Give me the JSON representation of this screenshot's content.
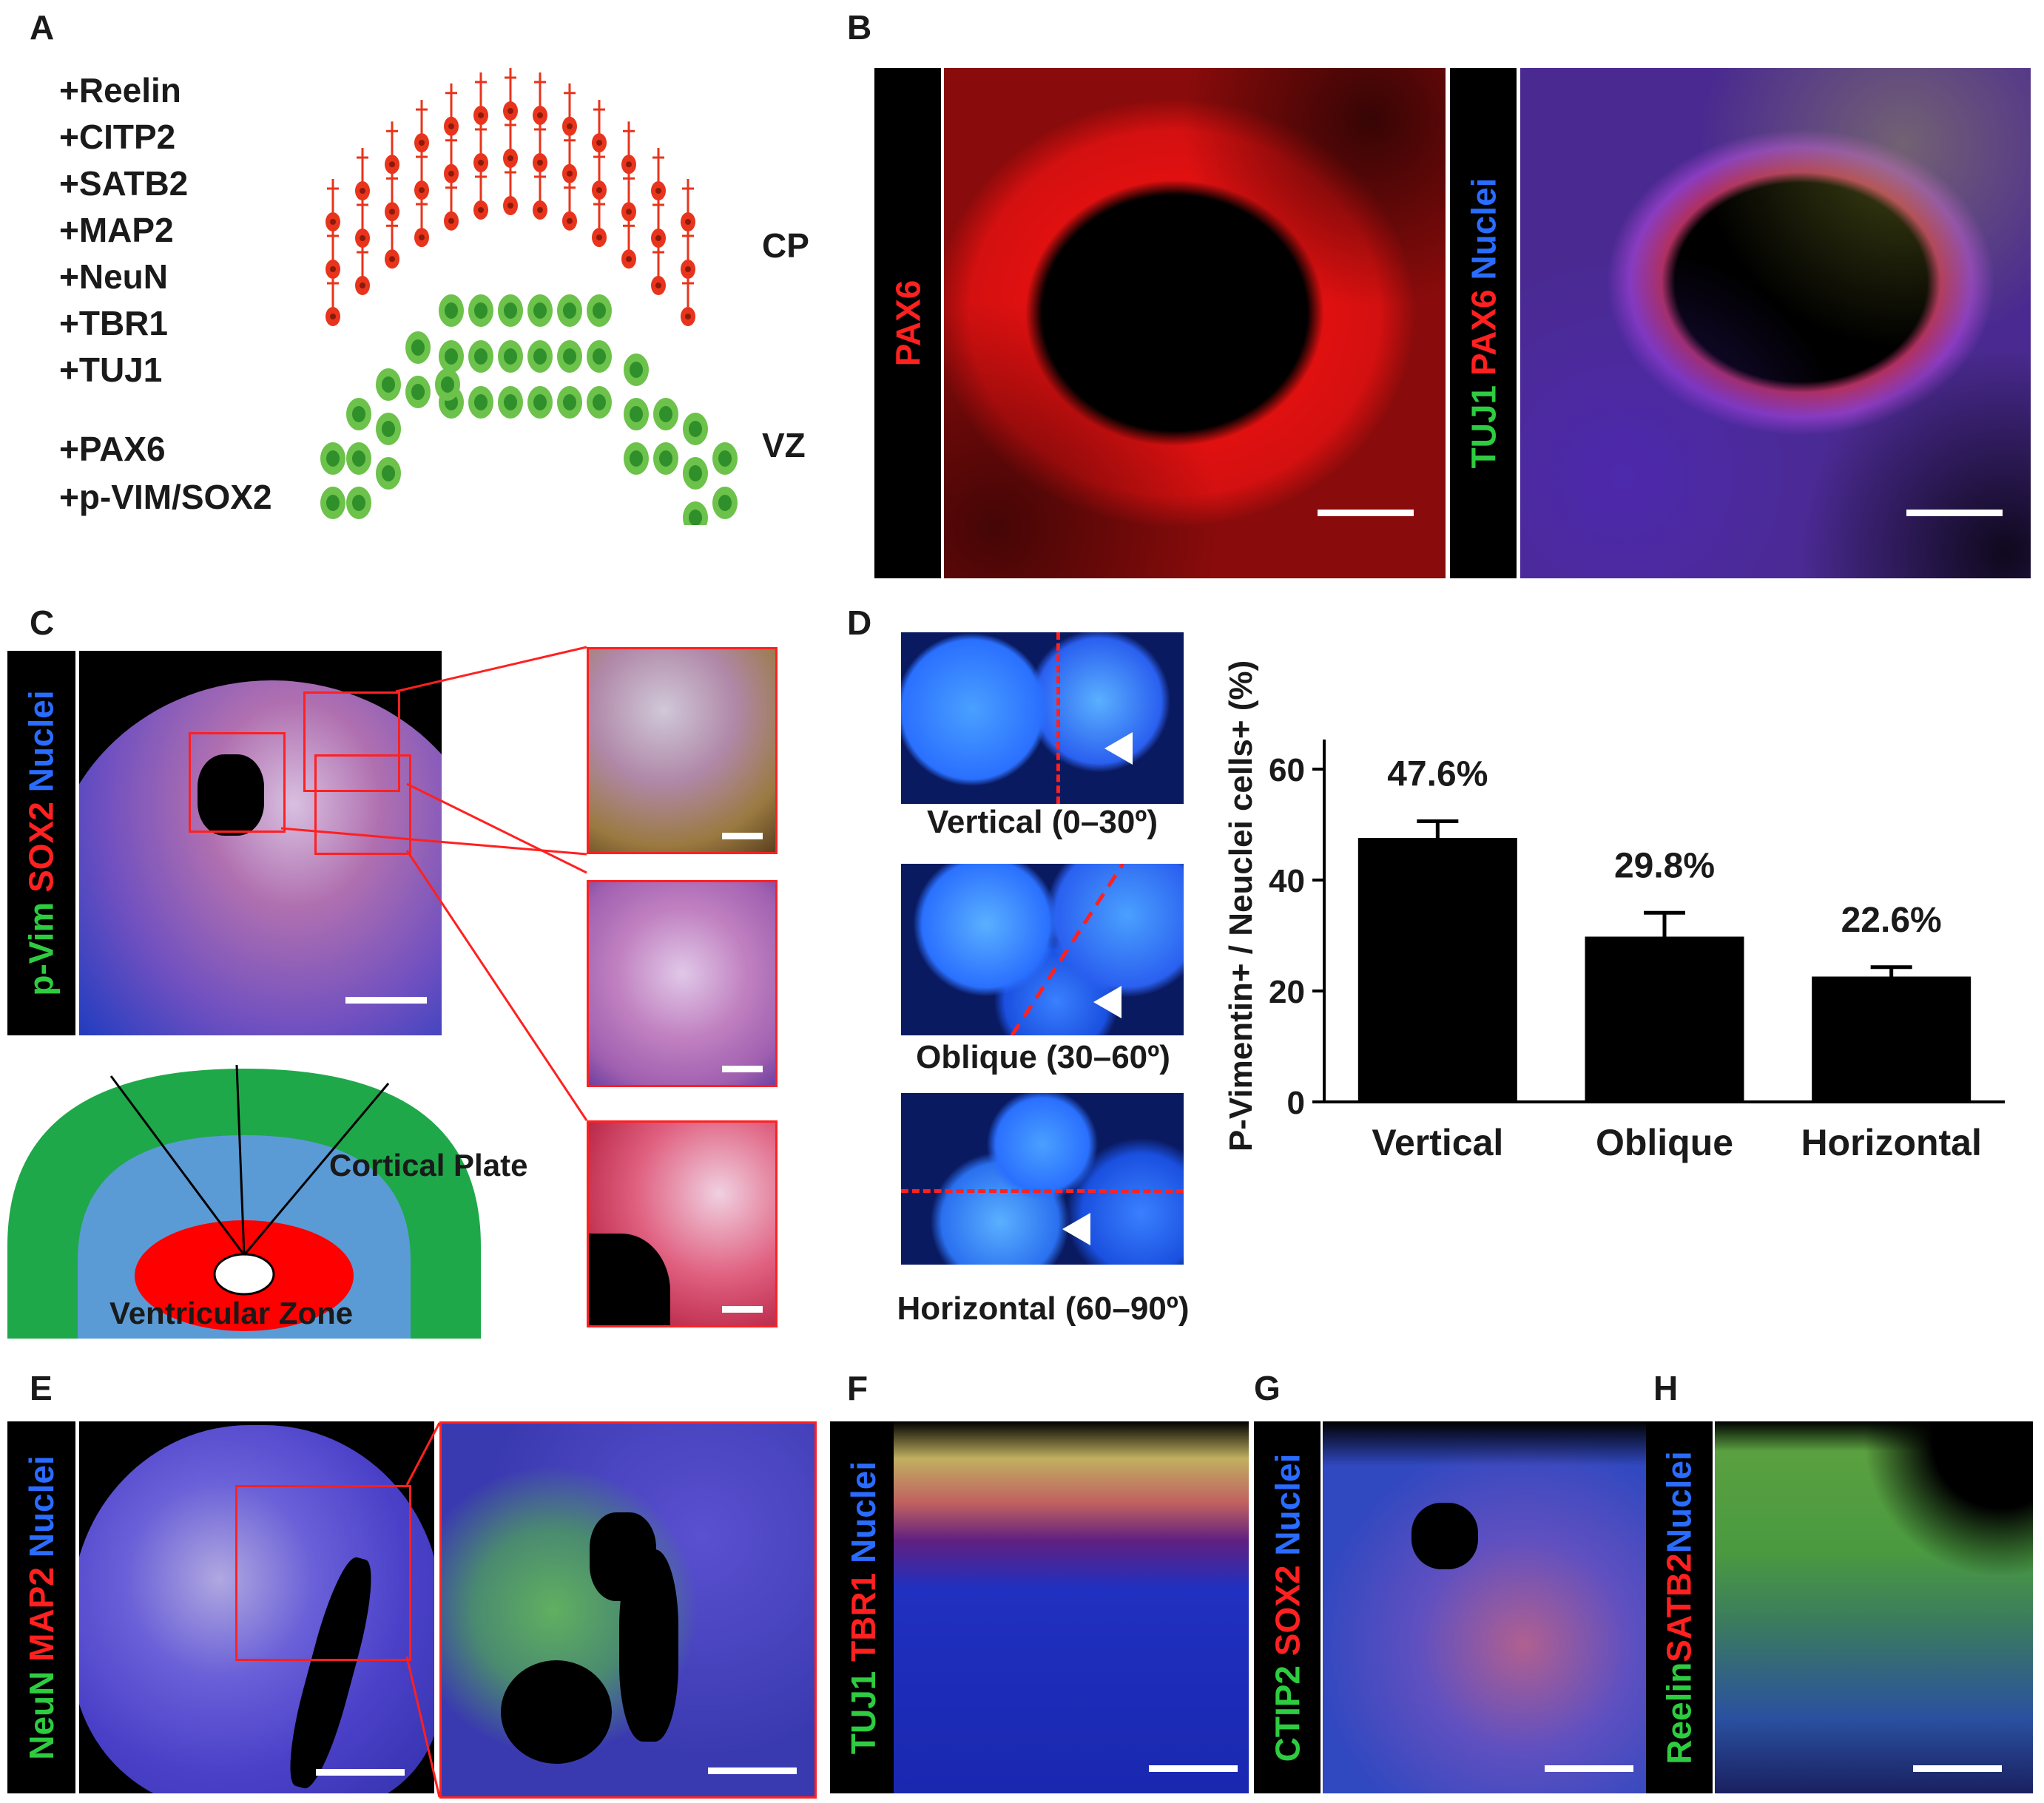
{
  "panel_letters": {
    "a": "A",
    "b": "B",
    "c": "C",
    "d": "D",
    "e": "E",
    "f": "F",
    "g": "G",
    "h": "H"
  },
  "panel_a": {
    "markers": [
      "+Reelin",
      "+CITP2",
      "+SATB2",
      "+MAP2",
      "+NeuN",
      "+TBR1",
      "+TUJ1",
      "+PAX6",
      "+p-VIM/SOX2"
    ],
    "cp_label": "CP",
    "vz_label": "VZ",
    "colors": {
      "neuron": "#e8341c",
      "progenitor": "#6cc24a",
      "progenitor_nucleus": "#2f8f2a"
    }
  },
  "panel_b": {
    "left_stain": {
      "pax6": "PAX6"
    },
    "right_stain": {
      "tuj1": "TUJ1",
      "pax6": "PAX6",
      "nuclei": "Nuclei"
    }
  },
  "panel_c": {
    "stain": {
      "pvim": "p-Vim",
      "sox2": "SOX2",
      "nuclei": "Nuclei"
    },
    "schematic": {
      "cortical_plate": "Cortical Plate",
      "ventricular_zone": "Ventricular Zone"
    },
    "colors": {
      "cortical_plate": "#1fa84a",
      "middle": "#5b9bd5",
      "vz": "#ff0000"
    }
  },
  "panel_d": {
    "images": [
      "Vertical (0–30º)",
      "Oblique (30–60º)",
      "Horizontal (60–90º)"
    ],
    "chart_data": {
      "type": "bar",
      "categories": [
        "Vertical",
        "Oblique",
        "Horizontal"
      ],
      "values": [
        47.6,
        29.8,
        22.6
      ],
      "errors": [
        3.0,
        4.3,
        1.7
      ],
      "data_labels": [
        "47.6%",
        "29.8%",
        "22.6%"
      ],
      "ylabel": "P-Vimentin+ / Neuclei cells+ (%)",
      "xlabel": "",
      "ylim": [
        0,
        60
      ],
      "yticks": [
        0,
        20,
        40,
        60
      ],
      "grid": false,
      "bar_color": "#000000"
    }
  },
  "panel_e": {
    "stain": {
      "neun": "NeuN",
      "map2": "MAP2",
      "nuclei": "Nuclei"
    }
  },
  "panel_f": {
    "stain": {
      "tuj1": "TUJ1",
      "tbr1": "TBR1",
      "nuclei": "Nuclei"
    }
  },
  "panel_g": {
    "stain": {
      "ctip2": "CTIP2",
      "sox2": "SOX2",
      "nuclei": "Nuclei"
    }
  },
  "panel_h": {
    "stain": {
      "reelin": "Reelin",
      "satb2": "SATB2",
      "nuclei": "Nuclei"
    }
  }
}
